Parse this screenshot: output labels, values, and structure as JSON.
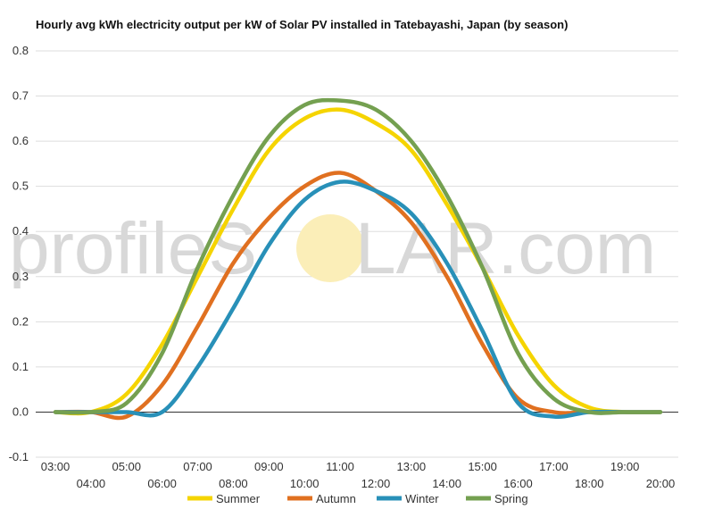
{
  "chart_data": {
    "type": "line",
    "title": "Hourly avg kWh electricity output per kW of Solar PV installed in Tatebayashi, Japan (by season)",
    "xlabel": "",
    "ylabel": "",
    "ylim": [
      -0.1,
      0.8
    ],
    "yticks": [
      "0.8",
      "0.7",
      "0.6",
      "0.5",
      "0.4",
      "0.3",
      "0.2",
      "0.1",
      "0.0",
      "-0.1"
    ],
    "categories": [
      "03:00",
      "04:00",
      "05:00",
      "06:00",
      "07:00",
      "08:00",
      "09:00",
      "10:00",
      "11:00",
      "12:00",
      "13:00",
      "14:00",
      "15:00",
      "16:00",
      "17:00",
      "18:00",
      "19:00",
      "20:00"
    ],
    "grid": true,
    "legend_position": "bottom",
    "series": [
      {
        "name": "Summer",
        "color": "#f5d400",
        "values": [
          0.0,
          0.0,
          0.04,
          0.15,
          0.3,
          0.45,
          0.58,
          0.65,
          0.67,
          0.64,
          0.58,
          0.46,
          0.32,
          0.17,
          0.06,
          0.01,
          0.0,
          0.0
        ]
      },
      {
        "name": "Autumn",
        "color": "#e07020",
        "values": [
          0.0,
          0.0,
          -0.01,
          0.06,
          0.19,
          0.33,
          0.43,
          0.5,
          0.53,
          0.49,
          0.42,
          0.3,
          0.15,
          0.03,
          0.0,
          0.0,
          0.0,
          0.0
        ]
      },
      {
        "name": "Winter",
        "color": "#2890b8",
        "values": [
          0.0,
          0.0,
          0.0,
          0.0,
          0.1,
          0.23,
          0.37,
          0.47,
          0.51,
          0.49,
          0.44,
          0.33,
          0.18,
          0.02,
          -0.01,
          0.0,
          0.0,
          0.0
        ]
      },
      {
        "name": "Spring",
        "color": "#74a050",
        "values": [
          0.0,
          0.0,
          0.02,
          0.13,
          0.32,
          0.48,
          0.61,
          0.68,
          0.69,
          0.67,
          0.6,
          0.48,
          0.32,
          0.13,
          0.03,
          0.0,
          0.0,
          0.0
        ]
      }
    ]
  },
  "watermark": {
    "left": "profileS",
    "right": "LAR.com",
    "sun_color": "#fbeeb8"
  }
}
